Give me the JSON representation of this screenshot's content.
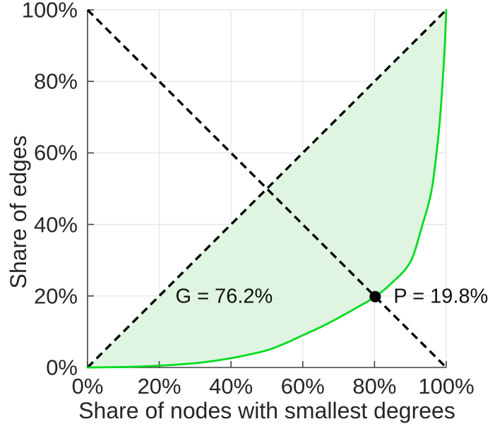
{
  "figure": {
    "background": "#ffffff"
  },
  "chart_data": {
    "type": "line",
    "title": "",
    "xlabel": "Share of nodes with smallest degrees",
    "ylabel": "Share of edges",
    "xlim": [
      0,
      1
    ],
    "ylim": [
      0,
      1
    ],
    "grid": true,
    "legend": false,
    "x_tick_values": [
      0,
      0.2,
      0.4,
      0.6,
      0.8,
      1.0
    ],
    "x_tick_labels": [
      "0%",
      "20%",
      "40%",
      "60%",
      "80%",
      "100%"
    ],
    "y_tick_values": [
      0,
      0.2,
      0.4,
      0.6,
      0.8,
      1.0
    ],
    "y_tick_labels": [
      "0%",
      "20%",
      "40%",
      "60%",
      "80%",
      "100%"
    ],
    "series": [
      {
        "name": "lorenz-curve",
        "type": "line",
        "style": "solid",
        "color": "#00dc1e",
        "fill_between_diagonal": true,
        "fill_color": "#dff5e2",
        "points": [
          [
            0,
            0
          ],
          [
            0.05,
            0.0005
          ],
          [
            0.1,
            0.0013
          ],
          [
            0.15,
            0.0028
          ],
          [
            0.2,
            0.005
          ],
          [
            0.25,
            0.008
          ],
          [
            0.3,
            0.012
          ],
          [
            0.35,
            0.018
          ],
          [
            0.4,
            0.026
          ],
          [
            0.45,
            0.036
          ],
          [
            0.5,
            0.048
          ],
          [
            0.55,
            0.067
          ],
          [
            0.6,
            0.09
          ],
          [
            0.65,
            0.113
          ],
          [
            0.7,
            0.139
          ],
          [
            0.75,
            0.167
          ],
          [
            0.802,
            0.198
          ],
          [
            0.85,
            0.238
          ],
          [
            0.9,
            0.295
          ],
          [
            0.934,
            0.4
          ],
          [
            0.96,
            0.5
          ],
          [
            0.973,
            0.6
          ],
          [
            0.983,
            0.7
          ],
          [
            0.99,
            0.8
          ],
          [
            0.996,
            0.9
          ],
          [
            1,
            1
          ]
        ]
      },
      {
        "name": "equality-diagonal",
        "type": "line",
        "style": "dashed",
        "color": "#000000",
        "points": [
          [
            0,
            0
          ],
          [
            1,
            1
          ]
        ]
      },
      {
        "name": "anti-diagonal",
        "type": "line",
        "style": "dashed",
        "color": "#000000",
        "points": [
          [
            0,
            1
          ],
          [
            1,
            0
          ]
        ]
      }
    ],
    "marker_point": {
      "x": 0.802,
      "y": 0.198,
      "color": "#000000"
    },
    "annotations": [
      {
        "id": "gini",
        "text": "G = 76.2%",
        "x": 0.245,
        "y": 0.198
      },
      {
        "id": "p",
        "text": "P = 19.8%",
        "x": 0.853,
        "y": 0.198
      }
    ],
    "colors": {
      "grid": "#e4e4e4",
      "axis": "#404040",
      "tick_text": "#262626",
      "curve": "#00dc1e",
      "curve_fill": "#dff5e2",
      "dashed": "#000000",
      "marker": "#000000"
    }
  }
}
